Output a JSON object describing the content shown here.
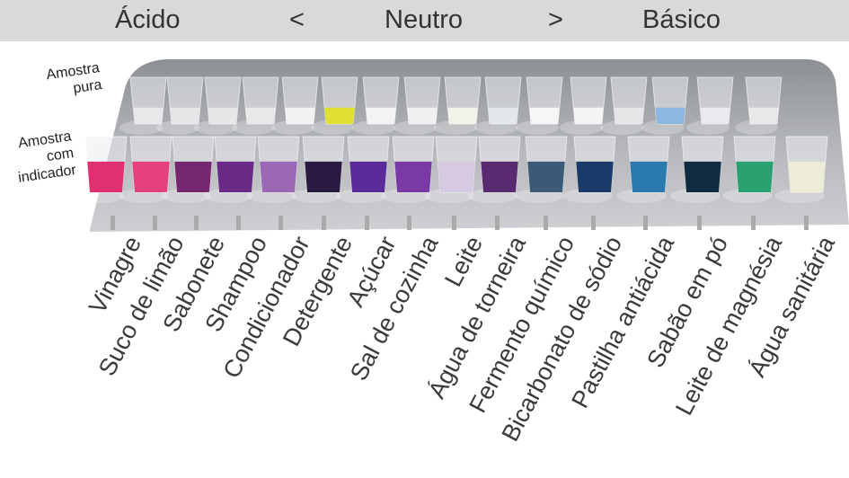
{
  "scale": {
    "acid": "Ácido",
    "less_than": "<",
    "neutral": "Neutro",
    "greater_than": ">",
    "basic": "Básico"
  },
  "row_labels": {
    "pure": "Amostra pura",
    "indicator": "Amostra com indicador"
  },
  "samples": [
    {
      "name": "Vinagre",
      "pure_color": "#e6e8ea",
      "indicator_color": "#e0306f"
    },
    {
      "name": "Suco de limão",
      "pure_color": "#e4e6e8",
      "indicator_color": "#e3407c"
    },
    {
      "name": "Sabonete",
      "pure_color": "#e6e6e6",
      "indicator_color": "#74286f"
    },
    {
      "name": "Shampoo",
      "pure_color": "#e8e8e8",
      "indicator_color": "#6a2a88"
    },
    {
      "name": "Condicionador",
      "pure_color": "#f2f2f2",
      "indicator_color": "#9a68b4"
    },
    {
      "name": "Detergente",
      "pure_color": "#e0e030",
      "indicator_color": "#2a1a42"
    },
    {
      "name": "Açúcar",
      "pure_color": "#f4f4f4",
      "indicator_color": "#5a2a98"
    },
    {
      "name": "Sal de cozinha",
      "pure_color": "#f0f0f0",
      "indicator_color": "#7a3aa6"
    },
    {
      "name": "Leite",
      "pure_color": "#f2f2e8",
      "indicator_color": "#d6cae2"
    },
    {
      "name": "Água de torneira",
      "pure_color": "#e4e8ea",
      "indicator_color": "#5a2a70"
    },
    {
      "name": "Fermento químico",
      "pure_color": "#f6f6f6",
      "indicator_color": "#3a5a78"
    },
    {
      "name": "Bicarbonato de sódio",
      "pure_color": "#f4f4f4",
      "indicator_color": "#1a3a6a"
    },
    {
      "name": "Pastilha antiácida",
      "pure_color": "#e4e6e8",
      "indicator_color": "#2a7ab0"
    },
    {
      "name": "Sabão em pó",
      "pure_color": "#8ab8e0",
      "indicator_color": "#102a40"
    },
    {
      "name": "Leite de magnésia",
      "pure_color": "#e8eaee",
      "indicator_color": "#2aa070"
    },
    {
      "name": "Água sanitária",
      "pure_color": "#e8eaea",
      "indicator_color": "#ececd8"
    }
  ]
}
